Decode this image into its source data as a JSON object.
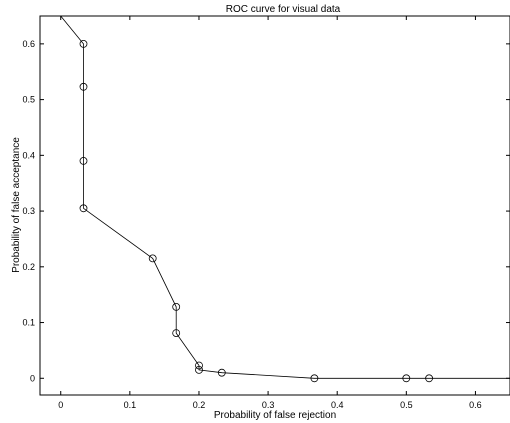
{
  "chart_data": {
    "type": "line",
    "title": "ROC curve for visual data",
    "xlabel": "Probability of false rejection",
    "ylabel": "Probability of false acceptance",
    "xlim": [
      -0.03,
      0.65
    ],
    "ylim": [
      -0.03,
      0.65
    ],
    "xticks": [
      "0",
      "0.1",
      "0.2",
      "0.3",
      "0.4",
      "0.5",
      "0.6"
    ],
    "yticks": [
      "0",
      "0.1",
      "0.2",
      "0.3",
      "0.4",
      "0.5",
      "0.6"
    ],
    "grid": false,
    "series": [
      {
        "line_x": [
          0,
          0.033,
          0.033,
          0.033,
          0.033,
          0.133,
          0.167,
          0.167,
          0.2,
          0.2,
          0.233,
          0.367,
          0.5,
          0.533,
          0.65
        ],
        "line_y": [
          0.65,
          0.6,
          0.523,
          0.39,
          0.305,
          0.215,
          0.128,
          0.081,
          0.023,
          0.015,
          0.01,
          0.0,
          0.0,
          0.0,
          0.0
        ],
        "marker_x": [
          0.033,
          0.033,
          0.033,
          0.033,
          0.133,
          0.167,
          0.167,
          0.2,
          0.2,
          0.233,
          0.367,
          0.5,
          0.533
        ],
        "marker_y": [
          0.6,
          0.523,
          0.39,
          0.305,
          0.215,
          0.128,
          0.081,
          0.023,
          0.015,
          0.01,
          0.0,
          0.0,
          0.0
        ],
        "color": "#000000"
      }
    ]
  }
}
